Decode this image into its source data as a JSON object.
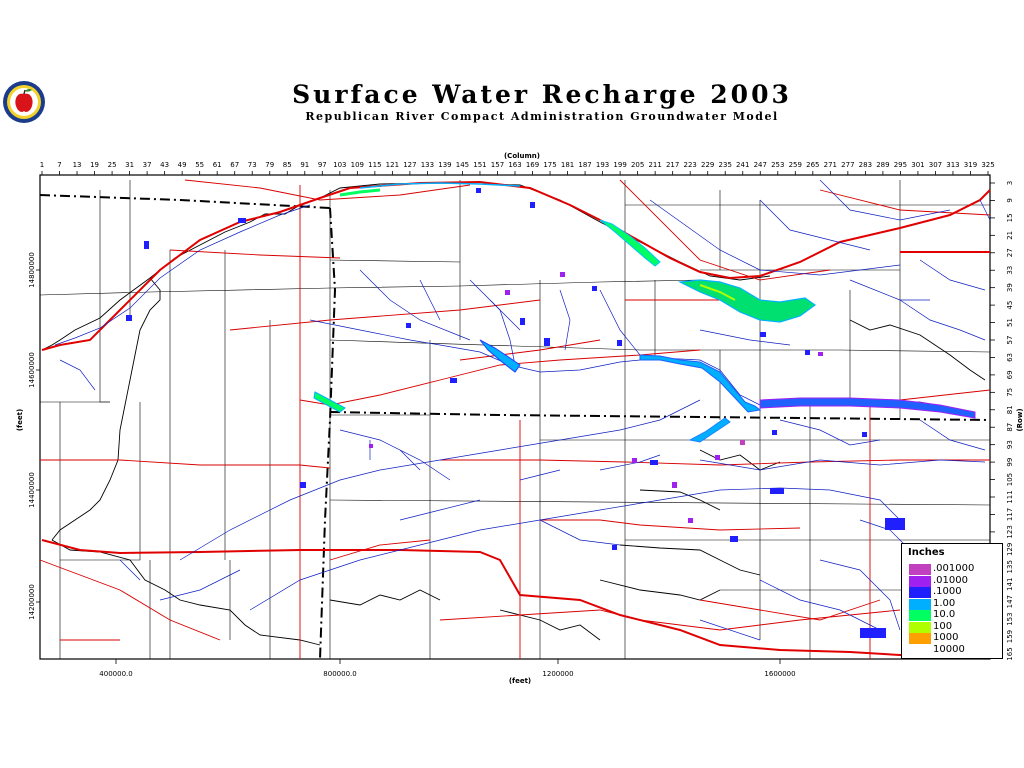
{
  "header": {
    "title": "Surface Water Recharge 2003",
    "subtitle": "Republican River Compact Administration Groundwater Model"
  },
  "axes": {
    "column_label": "(Column)",
    "row_label": "(Row)",
    "x_feet_label": "(feet)",
    "y_feet_label": "(feet)",
    "column_ticks": [
      "1",
      "7",
      "13",
      "19",
      "25",
      "31",
      "37",
      "43",
      "49",
      "55",
      "61",
      "67",
      "73",
      "79",
      "85",
      "91",
      "97",
      "103",
      "109",
      "115",
      "121",
      "127",
      "133",
      "139",
      "145",
      "151",
      "157",
      "163",
      "169",
      "175",
      "181",
      "187",
      "193",
      "199",
      "205",
      "211",
      "217",
      "223",
      "229",
      "235",
      "241",
      "247",
      "253",
      "259",
      "265",
      "271",
      "277",
      "283",
      "289",
      "295",
      "301",
      "307",
      "313",
      "319",
      "325"
    ],
    "row_ticks": [
      "3",
      "9",
      "15",
      "21",
      "27",
      "33",
      "39",
      "45",
      "51",
      "57",
      "63",
      "69",
      "75",
      "81",
      "87",
      "93",
      "99",
      "105",
      "111",
      "117",
      "123",
      "129",
      "135",
      "141",
      "147",
      "153",
      "159",
      "165"
    ],
    "x_feet_ticks": [
      "400000.0",
      "800000.0",
      "1200000",
      "1600000"
    ],
    "y_feet_ticks": [
      "14800000",
      "14600000",
      "14400000",
      "14200000"
    ]
  },
  "legend": {
    "title": "Inches",
    "entries": [
      {
        "label": ".001000",
        "color": "#c040c0"
      },
      {
        "label": ".01000",
        "color": "#a020f0"
      },
      {
        "label": ".1000",
        "color": "#2020ff"
      },
      {
        "label": "1.00",
        "color": "#00b0ff"
      },
      {
        "label": "10.0",
        "color": "#00ff60"
      },
      {
        "label": "100",
        "color": "#b0ff00"
      },
      {
        "label": "1000",
        "color": "#ffa000"
      },
      {
        "label": "10000",
        "color": "#ffffff"
      }
    ]
  },
  "colors": {
    "roads": "#e00000",
    "rivers": "#0000c0",
    "boundaries": "#000000"
  }
}
